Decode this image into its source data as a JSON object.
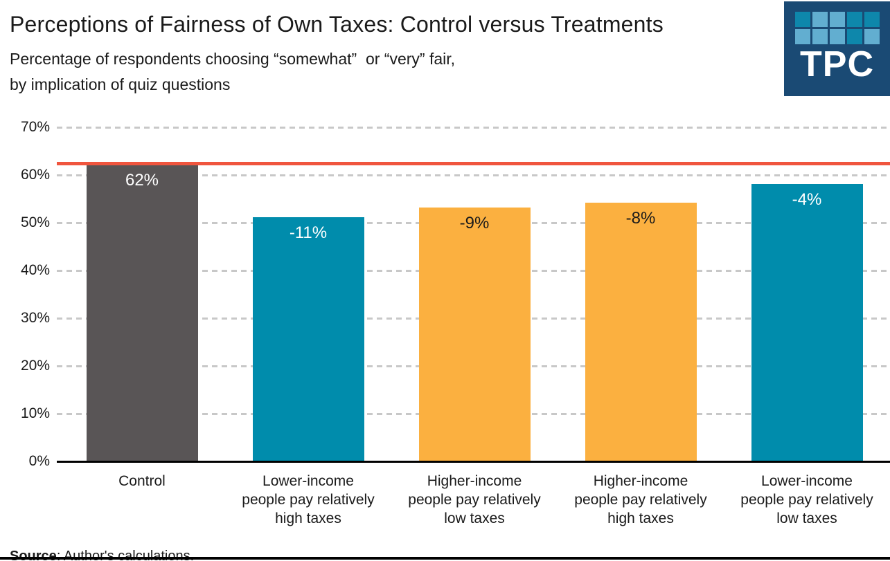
{
  "header": {
    "title": "Perceptions of Fairness of Own Taxes: Control versus Treatments",
    "subtitle_line1": "Percentage of respondents choosing “somewhat”  or “very” fair,",
    "subtitle_line2": "by implication of quiz questions",
    "logo": {
      "text": "TPC",
      "bg_color": "#1a4a74",
      "square_rows": [
        [
          "#0e87ab",
          "#62aed0",
          "#62aed0",
          "#0e87ab",
          "#0e87ab"
        ],
        [
          "#62aed0",
          "#62aed0",
          "#62aed0",
          "#0e87ab",
          "#62aed0"
        ]
      ]
    }
  },
  "chart_data": {
    "type": "bar",
    "title": "Perceptions of Fairness of Own Taxes: Control versus Treatments",
    "subtitle": "Percentage of respondents choosing “somewhat” or “very” fair, by implication of quiz questions",
    "ylim": [
      0,
      70
    ],
    "yticks": [
      "0%",
      "10%",
      "20%",
      "30%",
      "40%",
      "50%",
      "60%",
      "70%"
    ],
    "grid": "horizontal-dashed",
    "legend": "none",
    "reference_line": {
      "value": 62,
      "color": "#f0553e"
    },
    "categories": [
      "Control",
      "Lower-income people pay relatively high taxes",
      "Higher-income people pay relatively low taxes",
      "Higher-income people pay relatively high taxes",
      "Lower-income people pay relatively low taxes"
    ],
    "values": [
      62,
      51,
      53,
      54,
      58
    ],
    "bars": [
      {
        "category_lines": [
          "Control"
        ],
        "value": 62,
        "label": "62%",
        "color": "#595556",
        "label_color": "#ffffff"
      },
      {
        "category_lines": [
          "Lower-income",
          "people pay relatively",
          "high taxes"
        ],
        "value": 51,
        "label": "-11%",
        "color": "#008cac",
        "label_color": "#ffffff"
      },
      {
        "category_lines": [
          "Higher-income",
          "people pay relatively",
          "low taxes"
        ],
        "value": 53,
        "label": "-9%",
        "color": "#fbb040",
        "label_color": "#1a1a1a"
      },
      {
        "category_lines": [
          "Higher-income",
          "people pay relatively",
          "high taxes"
        ],
        "value": 54,
        "label": "-8%",
        "color": "#fbb040",
        "label_color": "#1a1a1a"
      },
      {
        "category_lines": [
          "Lower-income",
          "people pay relatively",
          "low taxes"
        ],
        "value": 58,
        "label": "-4%",
        "color": "#008cac",
        "label_color": "#ffffff"
      }
    ]
  },
  "footer": {
    "source_label": "Source",
    "source_text": ": Author's calculations."
  }
}
